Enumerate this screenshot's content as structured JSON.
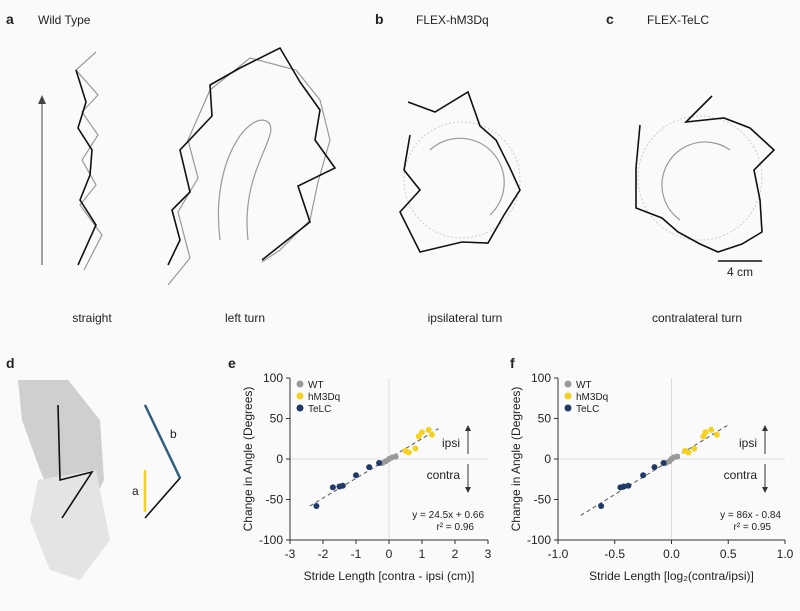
{
  "figure": {
    "panels": [
      {
        "letter": "a",
        "title": "Wild Type",
        "captions": [
          "straight",
          "left turn"
        ]
      },
      {
        "letter": "b",
        "title": "FLEX-hM3Dq",
        "captions": [
          "ipsilateral turn"
        ]
      },
      {
        "letter": "c",
        "title": "FLEX-TeLC",
        "captions": [
          "contralateral turn"
        ]
      },
      {
        "letter": "d",
        "labels": [
          "a",
          "b"
        ]
      },
      {
        "letter": "e"
      },
      {
        "letter": "f"
      }
    ],
    "scale_bar": "4 cm"
  },
  "chart_data": [
    {
      "type": "scatter",
      "xlabel": "Stride Length [contra - ipsi (cm)]",
      "ylabel": "Change in Angle (Degrees)",
      "xlim": [
        -3,
        3
      ],
      "xticks": [
        -3,
        -2,
        -1,
        0,
        1,
        2,
        3
      ],
      "ylim": [
        -100,
        100
      ],
      "yticks": [
        -100,
        -50,
        0,
        50,
        100
      ],
      "series": [
        {
          "name": "WT",
          "color": "#999999",
          "x": [
            -0.2,
            -0.1,
            0,
            0.1,
            0.2
          ],
          "values": [
            -5,
            -3,
            0,
            2,
            3
          ]
        },
        {
          "name": "hM3Dq",
          "color": "#f5d21f",
          "x": [
            0.5,
            0.6,
            0.8,
            0.9,
            1.0,
            1.2,
            1.3
          ],
          "values": [
            10,
            8,
            13,
            28,
            33,
            36,
            30
          ]
        },
        {
          "name": "TeLC",
          "color": "#1f3a68",
          "x": [
            -2.2,
            -1.7,
            -1.5,
            -1.4,
            -1.0,
            -0.6,
            -0.3
          ],
          "values": [
            -58,
            -35,
            -34,
            -33,
            -20,
            -10,
            -5
          ]
        }
      ],
      "fit": {
        "slope": 24.5,
        "intercept": 0.66
      },
      "fit_label": "y = 24.5x + 0.66",
      "r2_label": "r² = 0.96",
      "direction_labels": [
        "ipsi",
        "contra"
      ]
    },
    {
      "type": "scatter",
      "xlabel": "Stride Length [log₂(contra/ipsi)]",
      "ylabel": "Change in Angle (Degrees)",
      "xlim": [
        -1,
        1
      ],
      "xticks": [
        {
          "value": -1,
          "label": "-1.0"
        },
        {
          "value": -0.5,
          "label": "-0.5"
        },
        {
          "value": 0,
          "label": "0.0"
        },
        {
          "value": 0.5,
          "label": "0.5"
        },
        {
          "value": 1,
          "label": "1.0"
        }
      ],
      "ylim": [
        -100,
        100
      ],
      "yticks": [
        -100,
        -50,
        0,
        50,
        100
      ],
      "series": [
        {
          "name": "WT",
          "color": "#999999",
          "x": [
            -0.05,
            -0.02,
            0,
            0.02,
            0.05
          ],
          "values": [
            -5,
            -3,
            0,
            2,
            3
          ]
        },
        {
          "name": "hM3Dq",
          "color": "#f5d21f",
          "x": [
            0.12,
            0.15,
            0.2,
            0.28,
            0.3,
            0.35,
            0.4
          ],
          "values": [
            10,
            8,
            13,
            28,
            33,
            36,
            30
          ]
        },
        {
          "name": "TeLC",
          "color": "#1f3a68",
          "x": [
            -0.62,
            -0.45,
            -0.42,
            -0.38,
            -0.25,
            -0.15,
            -0.07
          ],
          "values": [
            -58,
            -35,
            -34,
            -33,
            -20,
            -10,
            -5
          ]
        }
      ],
      "fit": {
        "slope": 86,
        "intercept": -0.84
      },
      "fit_label": "y = 86x - 0.84",
      "r2_label": "r² = 0.95",
      "direction_labels": [
        "ipsi",
        "contra"
      ]
    }
  ]
}
